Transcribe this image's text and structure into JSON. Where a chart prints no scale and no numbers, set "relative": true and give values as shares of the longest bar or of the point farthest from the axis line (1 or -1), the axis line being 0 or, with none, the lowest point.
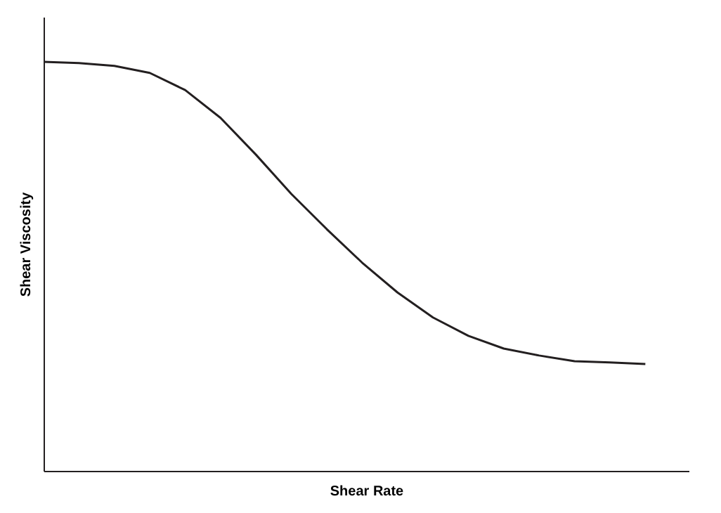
{
  "chart_data": {
    "type": "line",
    "xlabel": "Shear Rate",
    "ylabel": "Shear Viscosity",
    "relative": true,
    "categories": [
      null,
      null,
      null,
      null,
      null,
      null,
      null,
      null,
      null,
      null,
      null,
      null,
      null,
      null,
      null,
      null,
      null,
      null
    ],
    "series": [
      {
        "color": "#231f20",
        "values": [
          1,
          0.997,
          0.99,
          0.973,
          0.931,
          0.863,
          0.773,
          0.677,
          0.591,
          0.509,
          0.436,
          0.375,
          0.33,
          0.299,
          0.282,
          0.268,
          0.265,
          0.261
        ]
      }
    ],
    "marker": "none",
    "line_style": "solid"
  }
}
